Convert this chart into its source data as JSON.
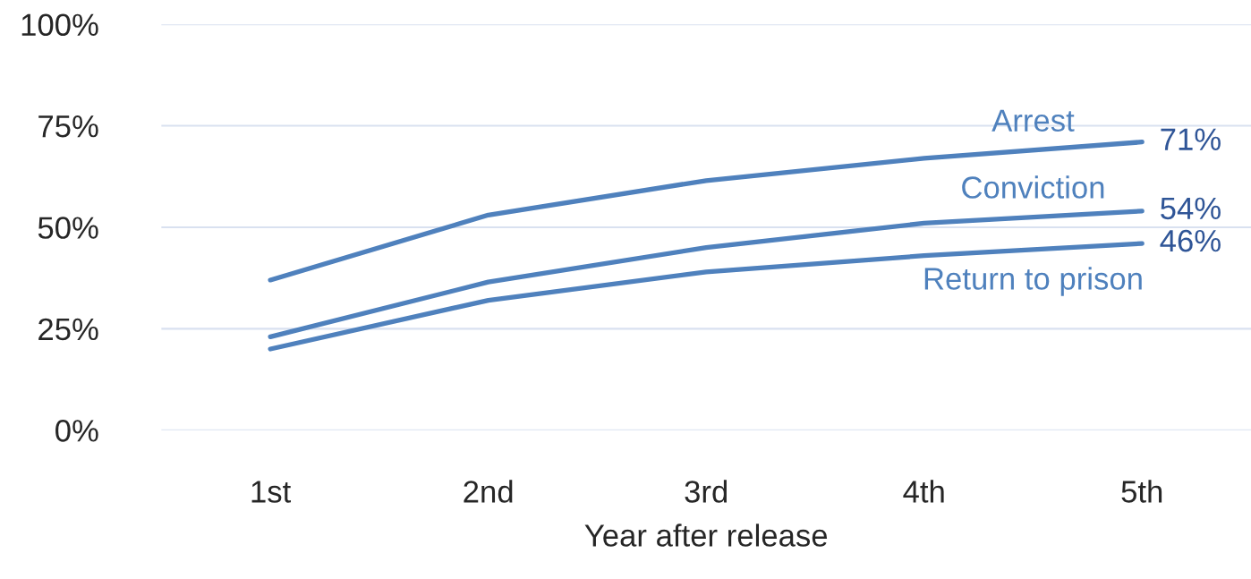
{
  "chart_data": {
    "type": "line",
    "xlabel": "Year after release",
    "categories": [
      "1st",
      "2nd",
      "3rd",
      "4th",
      "5th"
    ],
    "ylim": [
      0,
      100
    ],
    "yticks": [
      {
        "value": 0,
        "label": "0%"
      },
      {
        "value": 25,
        "label": "25%"
      },
      {
        "value": 50,
        "label": "50%"
      },
      {
        "value": 75,
        "label": "75%"
      },
      {
        "value": 100,
        "label": "100%"
      }
    ],
    "grid": "y",
    "legend": false,
    "marker": "none",
    "line_style": "solid",
    "series": [
      {
        "name": "Arrest",
        "color": "#4f81bd",
        "values": [
          37,
          53,
          61.5,
          67,
          71
        ],
        "value_labels": [
          null,
          null,
          null,
          null,
          "71%"
        ]
      },
      {
        "name": "Conviction",
        "color": "#4f81bd",
        "values": [
          23,
          36.5,
          45,
          51,
          54
        ],
        "value_labels": [
          null,
          null,
          null,
          null,
          "54%"
        ]
      },
      {
        "name": "Return to prison",
        "color": "#4f81bd",
        "values": [
          20,
          32,
          39,
          43,
          46
        ],
        "value_labels": [
          null,
          null,
          null,
          null,
          "46%"
        ]
      }
    ]
  }
}
